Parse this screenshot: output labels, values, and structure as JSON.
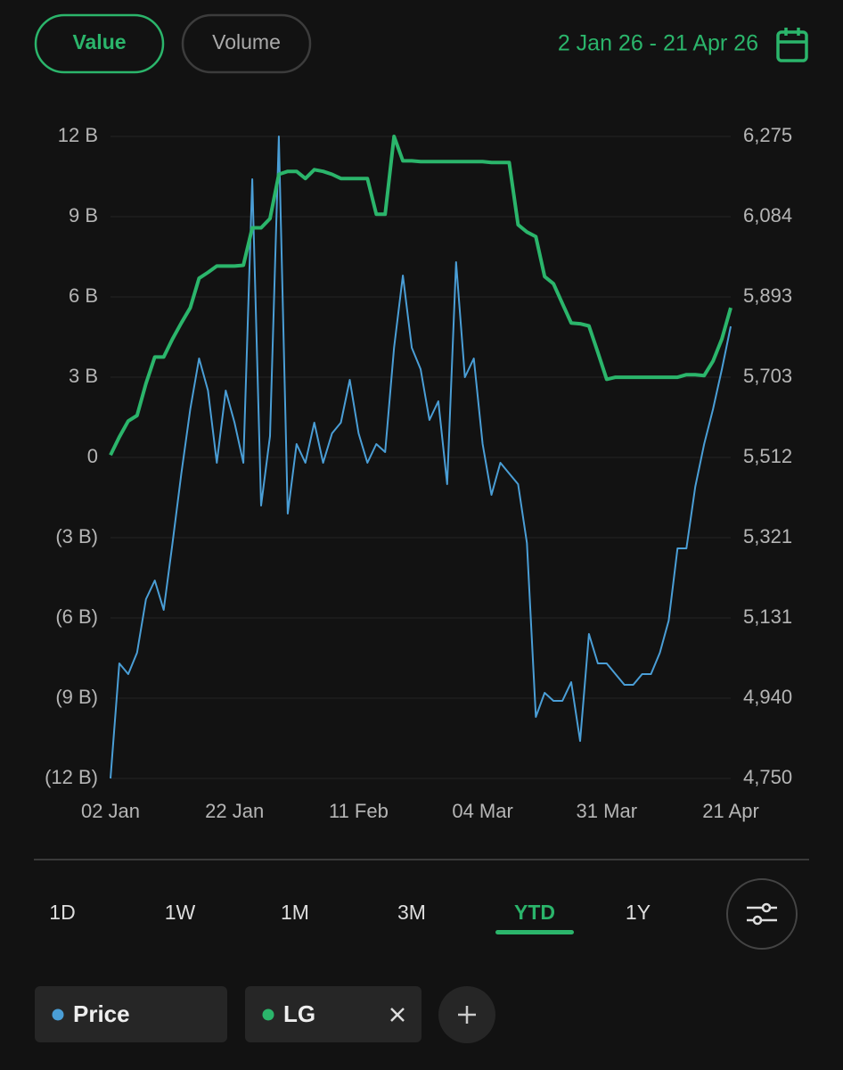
{
  "header": {
    "toggle": [
      {
        "label": "Value",
        "active": true
      },
      {
        "label": "Volume",
        "active": false
      }
    ],
    "date_range": "2 Jan 26 - 21 Apr 26"
  },
  "chart_data": {
    "type": "line",
    "categories": [
      "02 Jan",
      null,
      null,
      null,
      null,
      null,
      null,
      null,
      null,
      null,
      null,
      null,
      null,
      null,
      "22 Jan",
      null,
      null,
      null,
      null,
      null,
      null,
      null,
      null,
      null,
      null,
      null,
      null,
      null,
      "11 Feb",
      null,
      null,
      null,
      null,
      null,
      null,
      null,
      null,
      null,
      null,
      null,
      null,
      null,
      "04 Mar",
      null,
      null,
      null,
      null,
      null,
      null,
      null,
      null,
      null,
      null,
      null,
      null,
      null,
      "31 Mar",
      null,
      null,
      null,
      null,
      null,
      null,
      null,
      null,
      null,
      null,
      null,
      null,
      null,
      "21 Apr"
    ],
    "series": [
      {
        "name": "Price",
        "color": "#4a9ed6",
        "values": [
          -12,
          -7.7,
          -8.1,
          -7.3,
          -5.3,
          -4.6,
          -5.7,
          -3.2,
          -0.6,
          1.8,
          3.7,
          2.5,
          -0.2,
          2.5,
          1.3,
          -0.2,
          10.4,
          -1.8,
          0.8,
          12,
          -2.1,
          0.5,
          -0.2,
          1.3,
          -0.2,
          0.9,
          1.3,
          2.9,
          0.9,
          -0.2,
          0.5,
          0.2,
          4.1,
          6.8,
          4.1,
          3.3,
          1.4,
          2.1,
          -1.0,
          7.3,
          3.0,
          3.7,
          0.5,
          -1.4,
          -0.2,
          -0.6,
          -1.0,
          -3.2,
          -9.7,
          -8.8,
          -9.1,
          -9.1,
          -8.4,
          -10.6,
          -6.6,
          -7.7,
          -7.7,
          -8.1,
          -8.5,
          -8.5,
          -8.1,
          -8.1,
          -7.3,
          -6.1,
          -3.4,
          -3.4,
          -1.1,
          0.5,
          1.8,
          3.3,
          4.9
        ]
      },
      {
        "name": "LG",
        "color": "#2bb56b",
        "axis": "y2",
        "values": [
          5518,
          5561,
          5599,
          5612,
          5688,
          5751,
          5751,
          5794,
          5832,
          5868,
          5938,
          5952,
          5967,
          5967,
          5967,
          5969,
          6058,
          6058,
          6080,
          6185,
          6192,
          6192,
          6175,
          6196,
          6192,
          6185,
          6175,
          6175,
          6175,
          6175,
          6090,
          6090,
          6275,
          6217,
          6217,
          6215,
          6215,
          6215,
          6215,
          6215,
          6215,
          6215,
          6215,
          6213,
          6213,
          6213,
          6065,
          6048,
          6037,
          5942,
          5925,
          5878,
          5832,
          5830,
          5825,
          5762,
          5698,
          5703,
          5703,
          5703,
          5703,
          5703,
          5703,
          5703,
          5703,
          5709,
          5709,
          5707,
          5741,
          5794,
          5868
        ]
      }
    ],
    "ylim": [
      -12,
      12
    ],
    "yticks": [
      {
        "value": 12,
        "label": "12 B"
      },
      {
        "value": 9,
        "label": "9 B"
      },
      {
        "value": 6,
        "label": "6 B"
      },
      {
        "value": 3,
        "label": "3 B"
      },
      0,
      {
        "value": -3,
        "label": "(3 B)"
      },
      {
        "value": -6,
        "label": "(6 B)"
      },
      {
        "value": -9,
        "label": "(9 B)"
      },
      {
        "value": -12,
        "label": "(12 B)"
      }
    ],
    "y2lim": [
      4750,
      6275
    ],
    "y2ticks": [
      {
        "value": 6275,
        "label": "6,275"
      },
      {
        "value": 6084,
        "label": "6,084"
      },
      {
        "value": 5893,
        "label": "5,893"
      },
      {
        "value": 5703,
        "label": "5,703"
      },
      {
        "value": 5512,
        "label": "5,512"
      },
      {
        "value": 5321,
        "label": "5,321"
      },
      {
        "value": 5131,
        "label": "5,131"
      },
      {
        "value": 4940,
        "label": "4,940"
      },
      {
        "value": 4750,
        "label": "4,750"
      }
    ],
    "grid": true
  },
  "periods": [
    {
      "label": "1D",
      "active": false
    },
    {
      "label": "1W",
      "active": false
    },
    {
      "label": "1M",
      "active": false
    },
    {
      "label": "3M",
      "active": false
    },
    {
      "label": "YTD",
      "active": true
    },
    {
      "label": "1Y",
      "active": false
    }
  ]
}
